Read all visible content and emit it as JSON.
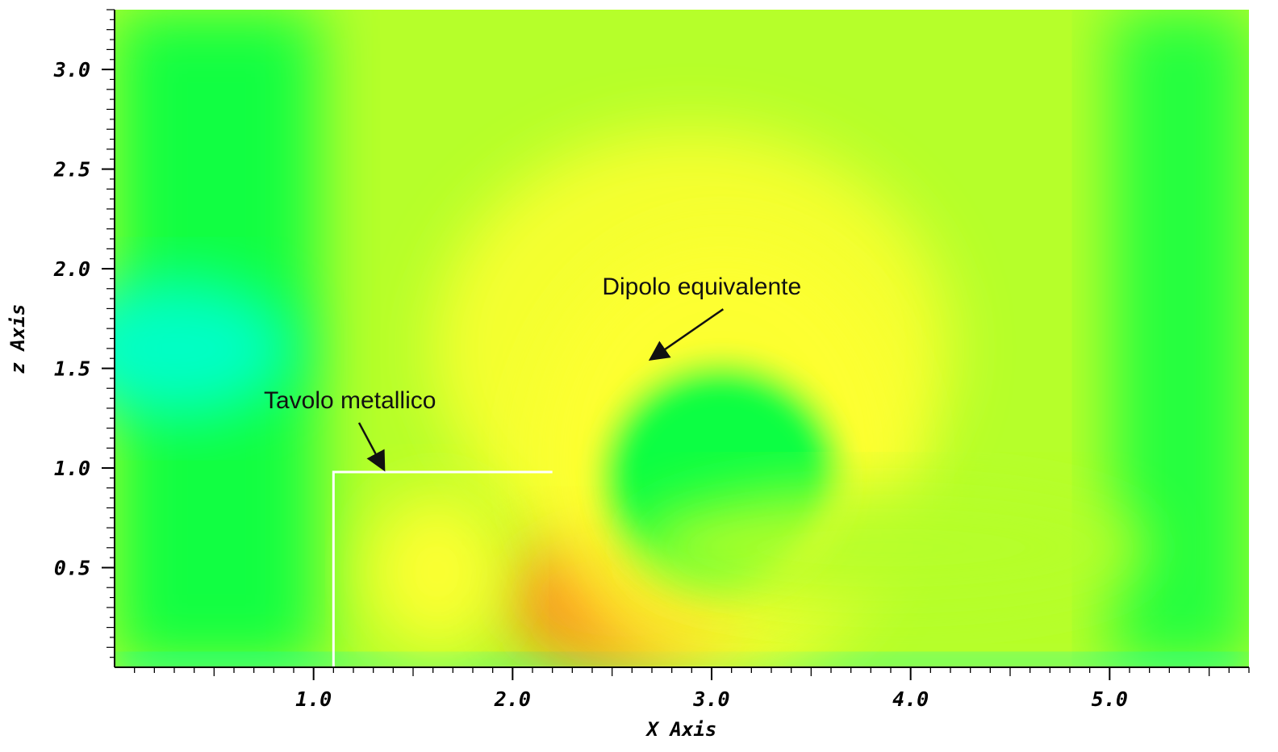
{
  "chart_data": {
    "type": "heatmap",
    "title": "",
    "xlabel": "X Axis",
    "ylabel": "z Axis",
    "xlim": [
      0.0,
      5.7
    ],
    "ylim": [
      0.0,
      3.3
    ],
    "x_ticks": [
      {
        "value": 1.0,
        "label": "1.0"
      },
      {
        "value": 2.0,
        "label": "2.0"
      },
      {
        "value": 3.0,
        "label": "3.0"
      },
      {
        "value": 4.0,
        "label": "4.0"
      },
      {
        "value": 5.0,
        "label": "5.0"
      }
    ],
    "y_ticks": [
      {
        "value": 0.5,
        "label": "0.5"
      },
      {
        "value": 1.0,
        "label": "1.0"
      },
      {
        "value": 1.5,
        "label": "1.5"
      },
      {
        "value": 2.0,
        "label": "2.0"
      },
      {
        "value": 2.5,
        "label": "2.5"
      },
      {
        "value": 3.0,
        "label": "3.0"
      }
    ],
    "colormap": [
      "#00ffcc",
      "#00ff44",
      "#b6ff2a",
      "#ffff33",
      "#ff8a1e"
    ],
    "field_features": [
      {
        "kind": "hotspot",
        "x": 2.55,
        "z": 0.35,
        "rx": 0.6,
        "rz": 0.35,
        "level": 1.0
      },
      {
        "kind": "hotspot",
        "x": 1.62,
        "z": 0.48,
        "rx": 0.35,
        "rz": 0.4,
        "level": 0.8
      },
      {
        "kind": "halo",
        "x": 3.05,
        "z": 1.05,
        "rx": 0.95,
        "rz": 1.1,
        "level": 0.75
      },
      {
        "kind": "ring-interior",
        "x": 3.05,
        "z": 0.95,
        "rx": 0.58,
        "rz": 0.55,
        "level": 0.35
      },
      {
        "kind": "lobe",
        "x": 3.9,
        "z": 0.6,
        "rx": 1.3,
        "rz": 0.3,
        "level": 0.55
      },
      {
        "kind": "cool-band",
        "x": 0.3,
        "z": 1.6,
        "rx": 0.6,
        "rz": 0.35,
        "level": 0.0
      }
    ],
    "annotations": [
      {
        "text": "Dipolo equivalente",
        "x": 2.45,
        "z": 1.87,
        "arrow_to": [
          2.7,
          1.55
        ]
      },
      {
        "text": "Tavolo metallico",
        "x": 0.75,
        "z": 1.3,
        "arrow_to": [
          1.35,
          1.0
        ]
      }
    ],
    "table_outline": {
      "points": [
        [
          1.1,
          0.0
        ],
        [
          1.1,
          0.98
        ],
        [
          2.2,
          0.98
        ]
      ],
      "color": "#ffffff"
    },
    "colors": {
      "background": "#ffffff",
      "axis": "#000000",
      "outline": "#ffffff"
    }
  }
}
